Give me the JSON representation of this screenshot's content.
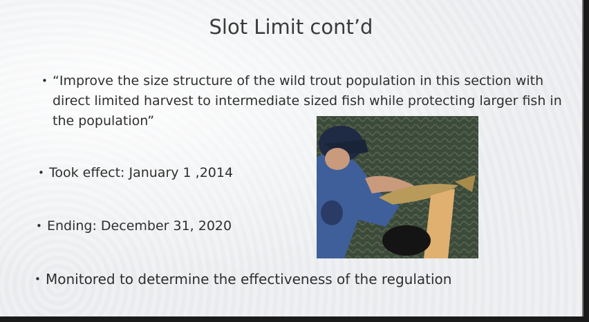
{
  "slide": {
    "title": "Slot Limit cont’d",
    "bullets": [
      "“Improve the size structure of the wild trout population in this section with direct limited harvest to intermediate sized fish while protecting larger fish in the population”",
      "Took effect: January 1 ,2014",
      "Ending: December 31, 2020",
      "Monitored to determine the effectiveness of the regulation"
    ]
  }
}
